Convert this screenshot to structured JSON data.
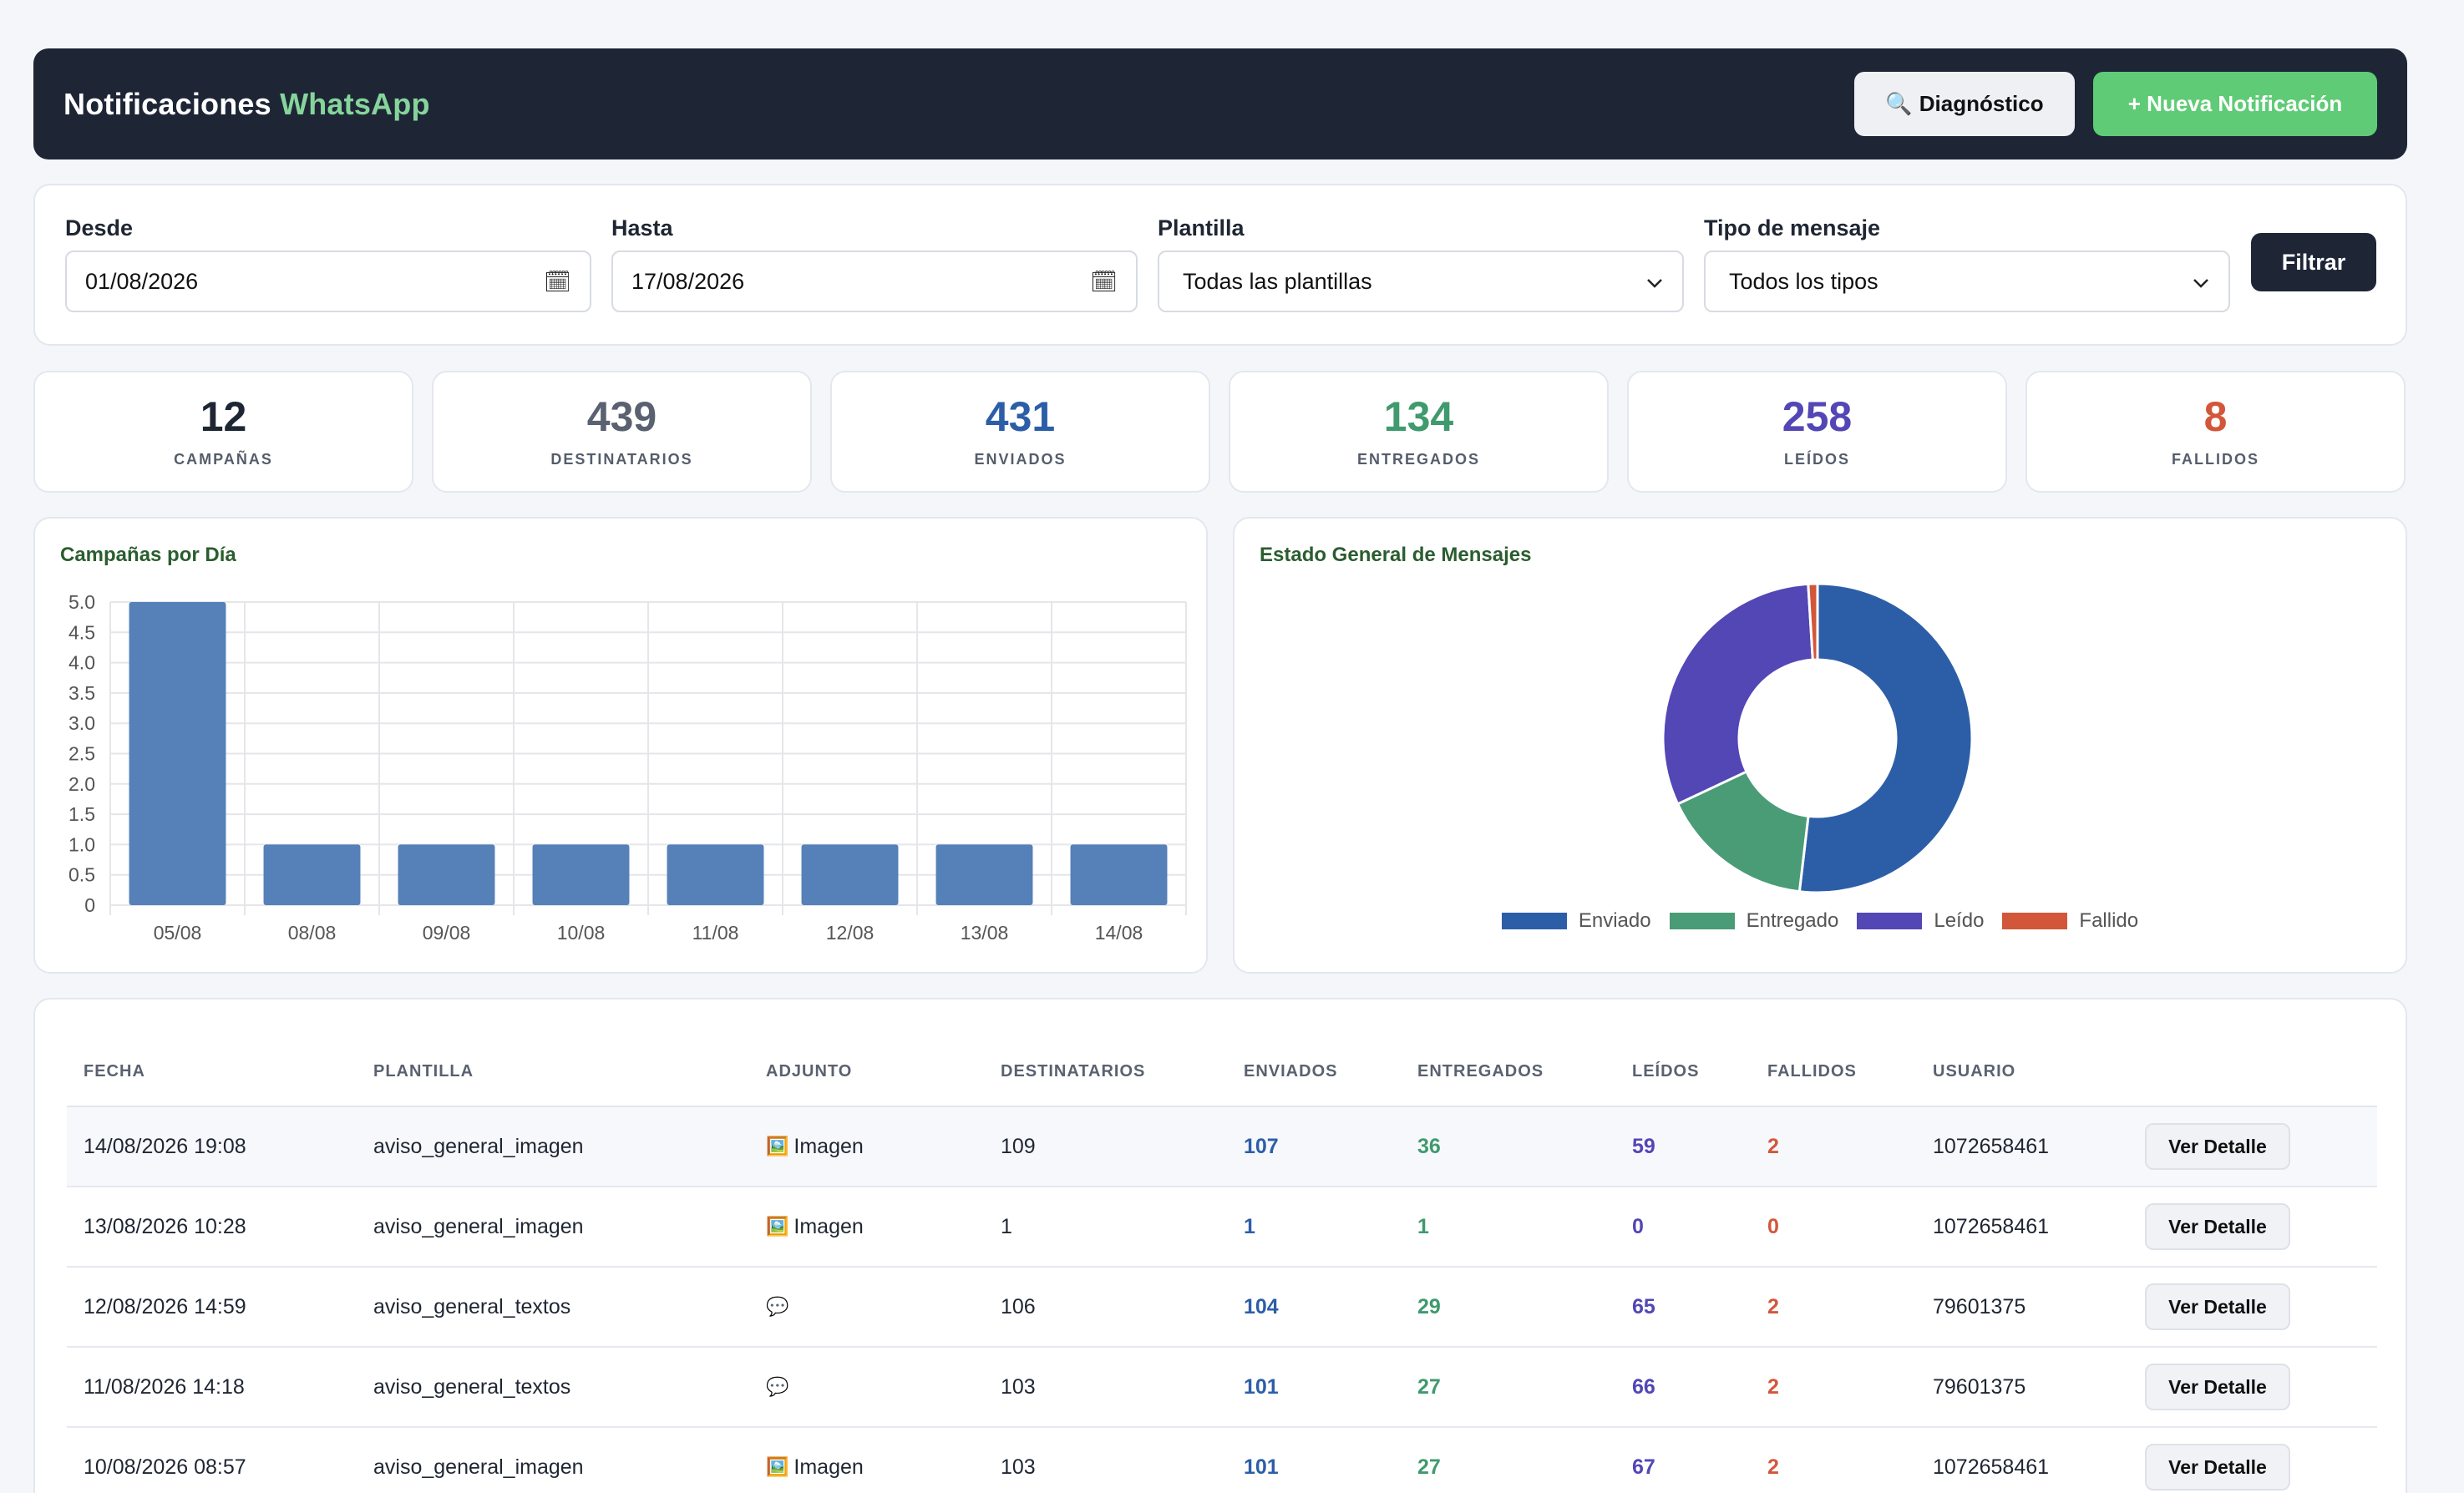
{
  "header": {
    "title": "Notificaciones",
    "title_accent": "WhatsApp",
    "diag_icon": "🔍",
    "diag_label": "Diagnóstico",
    "new_label": "+ Nueva Notificación"
  },
  "filters": {
    "desde_label": "Desde",
    "desde_value": "01/08/2026",
    "hasta_label": "Hasta",
    "hasta_value": "17/08/2026",
    "plantilla_label": "Plantilla",
    "plantilla_value": "Todas las plantillas",
    "tipo_label": "Tipo de mensaje",
    "tipo_value": "Todos los tipos",
    "filter_button": "Filtrar",
    "calendar_icon": "🗓",
    "chevron_icon": "⌄"
  },
  "stats": [
    {
      "value": "12",
      "label": "CAMPAÑAS",
      "color": "#1f2633"
    },
    {
      "value": "439",
      "label": "DESTINATARIOS",
      "color": "#5a6170"
    },
    {
      "value": "431",
      "label": "ENVIADOS",
      "color": "#2c5ea8"
    },
    {
      "value": "134",
      "label": "ENTREGADOS",
      "color": "#3f9a6d"
    },
    {
      "value": "258",
      "label": "LEÍDOS",
      "color": "#5346b5"
    },
    {
      "value": "8",
      "label": "FALLIDOS",
      "color": "#d2573a"
    }
  ],
  "chart_data": [
    {
      "type": "bar",
      "title": "Campañas por Día",
      "categories": [
        "05/08",
        "08/08",
        "09/08",
        "10/08",
        "11/08",
        "12/08",
        "13/08",
        "14/08"
      ],
      "values": [
        5,
        1,
        1,
        1,
        1,
        1,
        1,
        1
      ],
      "ylim": [
        0,
        5
      ],
      "yticks": [
        "0",
        "0.5",
        "1.0",
        "1.5",
        "2.0",
        "2.5",
        "3.0",
        "3.5",
        "4.0",
        "4.5",
        "5.0"
      ],
      "color": "#5580b8",
      "grid": true
    },
    {
      "type": "pie",
      "title": "Estado General de Mensajes",
      "labels": [
        "Enviado",
        "Entregado",
        "Leído",
        "Fallido"
      ],
      "values": [
        431,
        134,
        258,
        8
      ],
      "colors": [
        "#2c5ea8",
        "#4a9c77",
        "#5346b5",
        "#d2573a"
      ],
      "legend": "bottom"
    }
  ],
  "table": {
    "headers": [
      "FECHA",
      "PLANTILLA",
      "ADJUNTO",
      "DESTINATARIOS",
      "ENVIADOS",
      "ENTREGADOS",
      "LEÍDOS",
      "FALLIDOS",
      "USUARIO",
      ""
    ],
    "detail_label": "Ver Detalle",
    "rows": [
      {
        "fecha": "14/08/2026 19:08",
        "plantilla": "aviso_general_imagen",
        "adjunto_icon": "🖼️",
        "adjunto": "Imagen",
        "destinatarios": "109",
        "enviados": "107",
        "entregados": "36",
        "leidos": "59",
        "fallidos": "2",
        "usuario": "1072658461"
      },
      {
        "fecha": "13/08/2026 10:28",
        "plantilla": "aviso_general_imagen",
        "adjunto_icon": "🖼️",
        "adjunto": "Imagen",
        "destinatarios": "1",
        "enviados": "1",
        "entregados": "1",
        "leidos": "0",
        "fallidos": "0",
        "usuario": "1072658461"
      },
      {
        "fecha": "12/08/2026 14:59",
        "plantilla": "aviso_general_textos",
        "adjunto_icon": "💬",
        "adjunto": "",
        "destinatarios": "106",
        "enviados": "104",
        "entregados": "29",
        "leidos": "65",
        "fallidos": "2",
        "usuario": "79601375"
      },
      {
        "fecha": "11/08/2026 14:18",
        "plantilla": "aviso_general_textos",
        "adjunto_icon": "💬",
        "adjunto": "",
        "destinatarios": "103",
        "enviados": "101",
        "entregados": "27",
        "leidos": "66",
        "fallidos": "2",
        "usuario": "79601375"
      },
      {
        "fecha": "10/08/2026 08:57",
        "plantilla": "aviso_general_imagen",
        "adjunto_icon": "🖼️",
        "adjunto": "Imagen",
        "destinatarios": "103",
        "enviados": "101",
        "entregados": "27",
        "leidos": "67",
        "fallidos": "2",
        "usuario": "1072658461"
      }
    ]
  }
}
